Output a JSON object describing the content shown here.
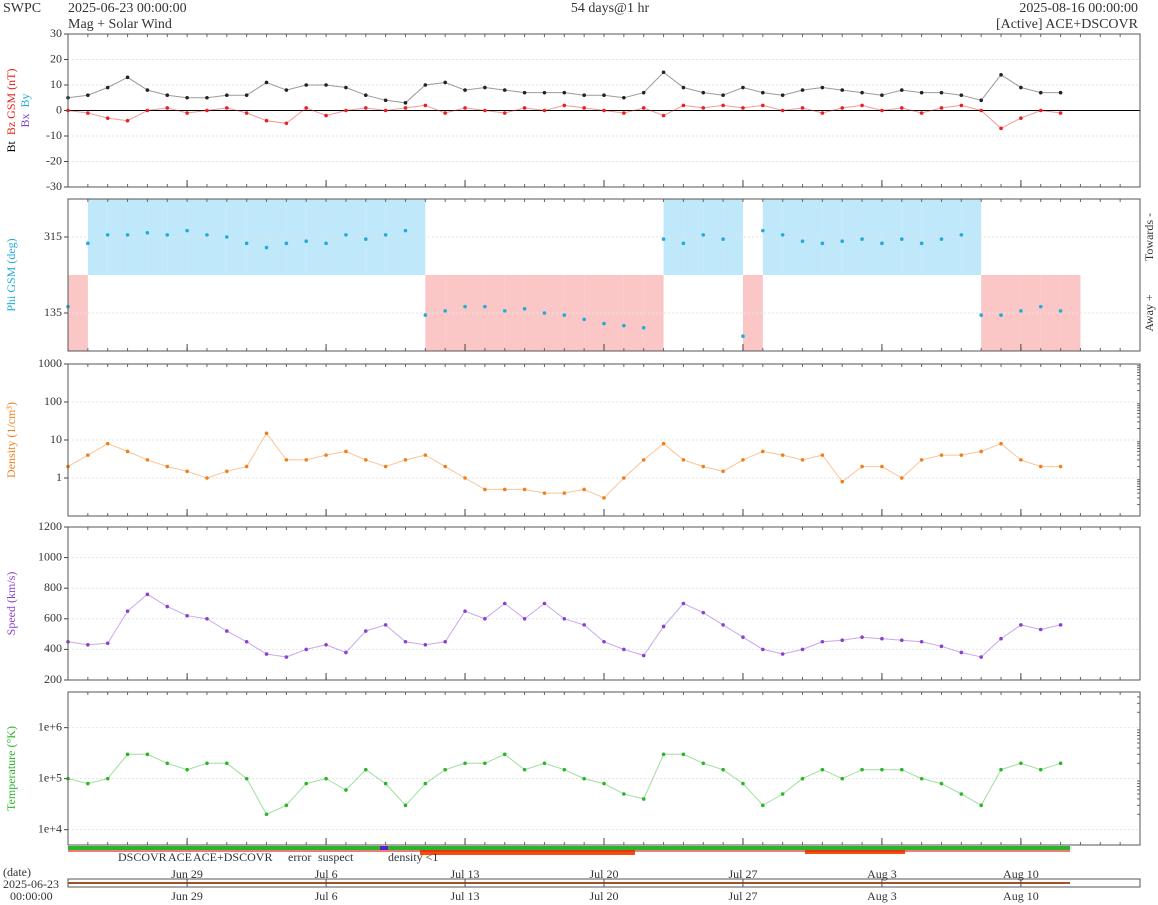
{
  "header": {
    "org": "SWPC",
    "start": "2025-06-23 00:00:00",
    "subtitle": "Mag + Solar Wind",
    "span": "54 days@1 hr",
    "end": "2025-08-16 00:00:00",
    "source": "[Active] ACE+DSCOVR"
  },
  "chart_data": {
    "type": "scatter",
    "xlim": [
      "2025-06-23",
      "2025-08-16"
    ],
    "xticks": [
      {
        "value": "2025-06-29",
        "label": "Jun 29"
      },
      {
        "value": "2025-07-06",
        "label": "Jul 6"
      },
      {
        "value": "2025-07-13",
        "label": "Jul 13"
      },
      {
        "value": "2025-07-20",
        "label": "Jul 20"
      },
      {
        "value": "2025-07-27",
        "label": "Jul 27"
      },
      {
        "value": "2025-08-03",
        "label": "Aug 3"
      },
      {
        "value": "2025-08-10",
        "label": "Aug 10"
      }
    ],
    "x": [
      "2025-06-23",
      "2025-06-24",
      "2025-06-25",
      "2025-06-26",
      "2025-06-27",
      "2025-06-28",
      "2025-06-29",
      "2025-06-30",
      "2025-07-01",
      "2025-07-02",
      "2025-07-03",
      "2025-07-04",
      "2025-07-05",
      "2025-07-06",
      "2025-07-07",
      "2025-07-08",
      "2025-07-09",
      "2025-07-10",
      "2025-07-11",
      "2025-07-12",
      "2025-07-13",
      "2025-07-14",
      "2025-07-15",
      "2025-07-16",
      "2025-07-17",
      "2025-07-18",
      "2025-07-19",
      "2025-07-20",
      "2025-07-21",
      "2025-07-22",
      "2025-07-23",
      "2025-07-24",
      "2025-07-25",
      "2025-07-26",
      "2025-07-27",
      "2025-07-28",
      "2025-07-29",
      "2025-07-30",
      "2025-07-31",
      "2025-08-01",
      "2025-08-02",
      "2025-08-03",
      "2025-08-04",
      "2025-08-05",
      "2025-08-06",
      "2025-08-07",
      "2025-08-08",
      "2025-08-09",
      "2025-08-10",
      "2025-08-11",
      "2025-08-12"
    ],
    "panels": [
      {
        "ylabel": [
          {
            "text": "Bt",
            "color": "#000000"
          },
          {
            "text": "Bz GSM (nT)",
            "color": "#e8201e"
          }
        ],
        "ylabel2": [
          {
            "text": "Bx",
            "color": "#7b3fd0"
          },
          {
            "text": "By",
            "color": "#22aadd"
          }
        ],
        "ylim": [
          -30,
          30
        ],
        "yticks": [
          -30,
          -20,
          -10,
          0,
          10,
          20,
          30
        ],
        "zero_line": true,
        "grid": true,
        "series": [
          {
            "name": "Bt",
            "color": "#222222",
            "values": [
              5,
              6,
              9,
              13,
              8,
              6,
              5,
              5,
              6,
              6,
              11,
              8,
              10,
              10,
              9,
              6,
              4,
              3,
              10,
              11,
              8,
              9,
              8,
              7,
              7,
              7,
              6,
              6,
              5,
              7,
              15,
              9,
              7,
              6,
              9,
              7,
              6,
              8,
              9,
              8,
              7,
              6,
              8,
              7,
              7,
              6,
              4,
              14,
              9,
              7,
              7
            ]
          },
          {
            "name": "Bz",
            "color": "#e8201e",
            "values": [
              0,
              -1,
              -3,
              -4,
              0,
              1,
              -1,
              0,
              1,
              -1,
              -4,
              -5,
              1,
              -2,
              0,
              1,
              0,
              1,
              2,
              -1,
              1,
              0,
              -1,
              1,
              0,
              2,
              1,
              0,
              -1,
              1,
              -2,
              2,
              1,
              2,
              1,
              2,
              0,
              1,
              -1,
              1,
              2,
              0,
              1,
              -1,
              1,
              2,
              0,
              -7,
              -3,
              0,
              -1
            ]
          }
        ]
      },
      {
        "ylabel": [
          {
            "text": "Phi GSM (deg)",
            "color": "#22aadd"
          }
        ],
        "right_top": "Towards -",
        "right_bottom": "Away +",
        "ylim": [
          45,
          405
        ],
        "yticks": [
          135,
          315
        ],
        "grid": true,
        "shade": true,
        "towards_color": "#bfe9fb",
        "away_color": "#fac6c6",
        "series": [
          {
            "name": "Phi",
            "color": "#22aadd",
            "values": [
              150,
              300,
              320,
              320,
              325,
              320,
              330,
              320,
              315,
              300,
              290,
              300,
              305,
              300,
              320,
              310,
              320,
              330,
              130,
              140,
              150,
              150,
              140,
              145,
              135,
              130,
              120,
              110,
              105,
              100,
              310,
              300,
              320,
              310,
              80,
              330,
              320,
              305,
              300,
              305,
              310,
              300,
              310,
              300,
              310,
              320,
              130,
              130,
              140,
              150,
              140
            ]
          }
        ]
      },
      {
        "ylabel": [
          {
            "text": "Density (1/cm³)",
            "color": "#f07f1b"
          }
        ],
        "log": true,
        "ylim": [
          0.1,
          1000
        ],
        "yticks": [
          1,
          10,
          100,
          1000
        ],
        "grid": true,
        "series": [
          {
            "name": "Density",
            "color": "#f07f1b",
            "values": [
              2,
              4,
              8,
              5,
              3,
              2,
              1.5,
              1,
              1.5,
              2,
              15,
              3,
              3,
              4,
              5,
              3,
              2,
              3,
              4,
              2,
              1,
              0.5,
              0.5,
              0.5,
              0.4,
              0.4,
              0.5,
              0.3,
              1,
              3,
              8,
              3,
              2,
              1.5,
              3,
              5,
              4,
              3,
              4,
              0.8,
              2,
              2,
              1,
              3,
              4,
              4,
              5,
              8,
              3,
              2,
              2
            ]
          }
        ]
      },
      {
        "ylabel": [
          {
            "text": "Speed (km/s)",
            "color": "#8a3fd0"
          }
        ],
        "ylim": [
          200,
          1200
        ],
        "yticks": [
          200,
          400,
          600,
          800,
          1000,
          1200
        ],
        "grid": true,
        "series": [
          {
            "name": "Speed",
            "color": "#8a3fd0",
            "values": [
              450,
              430,
              440,
              650,
              760,
              680,
              620,
              600,
              520,
              450,
              370,
              350,
              400,
              430,
              380,
              520,
              560,
              450,
              430,
              450,
              650,
              600,
              700,
              600,
              700,
              600,
              560,
              450,
              400,
              360,
              550,
              700,
              640,
              560,
              480,
              400,
              370,
              400,
              450,
              460,
              480,
              470,
              460,
              450,
              420,
              380,
              350,
              470,
              560,
              530,
              560
            ]
          }
        ]
      },
      {
        "ylabel": [
          {
            "text": "Temperature (°K)",
            "color": "#2ab52a"
          }
        ],
        "log": true,
        "ylim": [
          5000,
          5000000
        ],
        "yticks": [
          {
            "value": 10000,
            "label": "1e+4"
          },
          {
            "value": 100000,
            "label": "1e+5"
          },
          {
            "value": 1000000,
            "label": "1e+6"
          }
        ],
        "grid": true,
        "series": [
          {
            "name": "Temperature",
            "color": "#2ab52a",
            "values": [
              100000,
              80000,
              100000,
              300000,
              300000,
              200000,
              150000,
              200000,
              200000,
              100000,
              20000,
              30000,
              80000,
              100000,
              60000,
              150000,
              80000,
              30000,
              80000,
              150000,
              200000,
              200000,
              300000,
              150000,
              200000,
              150000,
              100000,
              80000,
              50000,
              40000,
              300000,
              300000,
              200000,
              150000,
              80000,
              30000,
              50000,
              100000,
              150000,
              100000,
              150000,
              150000,
              150000,
              100000,
              80000,
              50000,
              30000,
              150000,
              200000,
              150000,
              200000
            ]
          }
        ]
      }
    ]
  },
  "status_legend": [
    {
      "text": "DSCOVR",
      "color": "#1a1ad0"
    },
    {
      "text": "ACE",
      "color": "#2ab52a"
    },
    {
      "text": "ACE+DSCOVR",
      "color": "#e020c0"
    },
    {
      "text": "error",
      "color": "#e8201e"
    },
    {
      "text": "suspect",
      "color": "#e0b000"
    },
    {
      "text": "density <1",
      "color": "#f07f1b"
    }
  ],
  "date_axis": {
    "label": "(date)",
    "start_date": "2025-06-23",
    "start_time": "00:00:00"
  }
}
